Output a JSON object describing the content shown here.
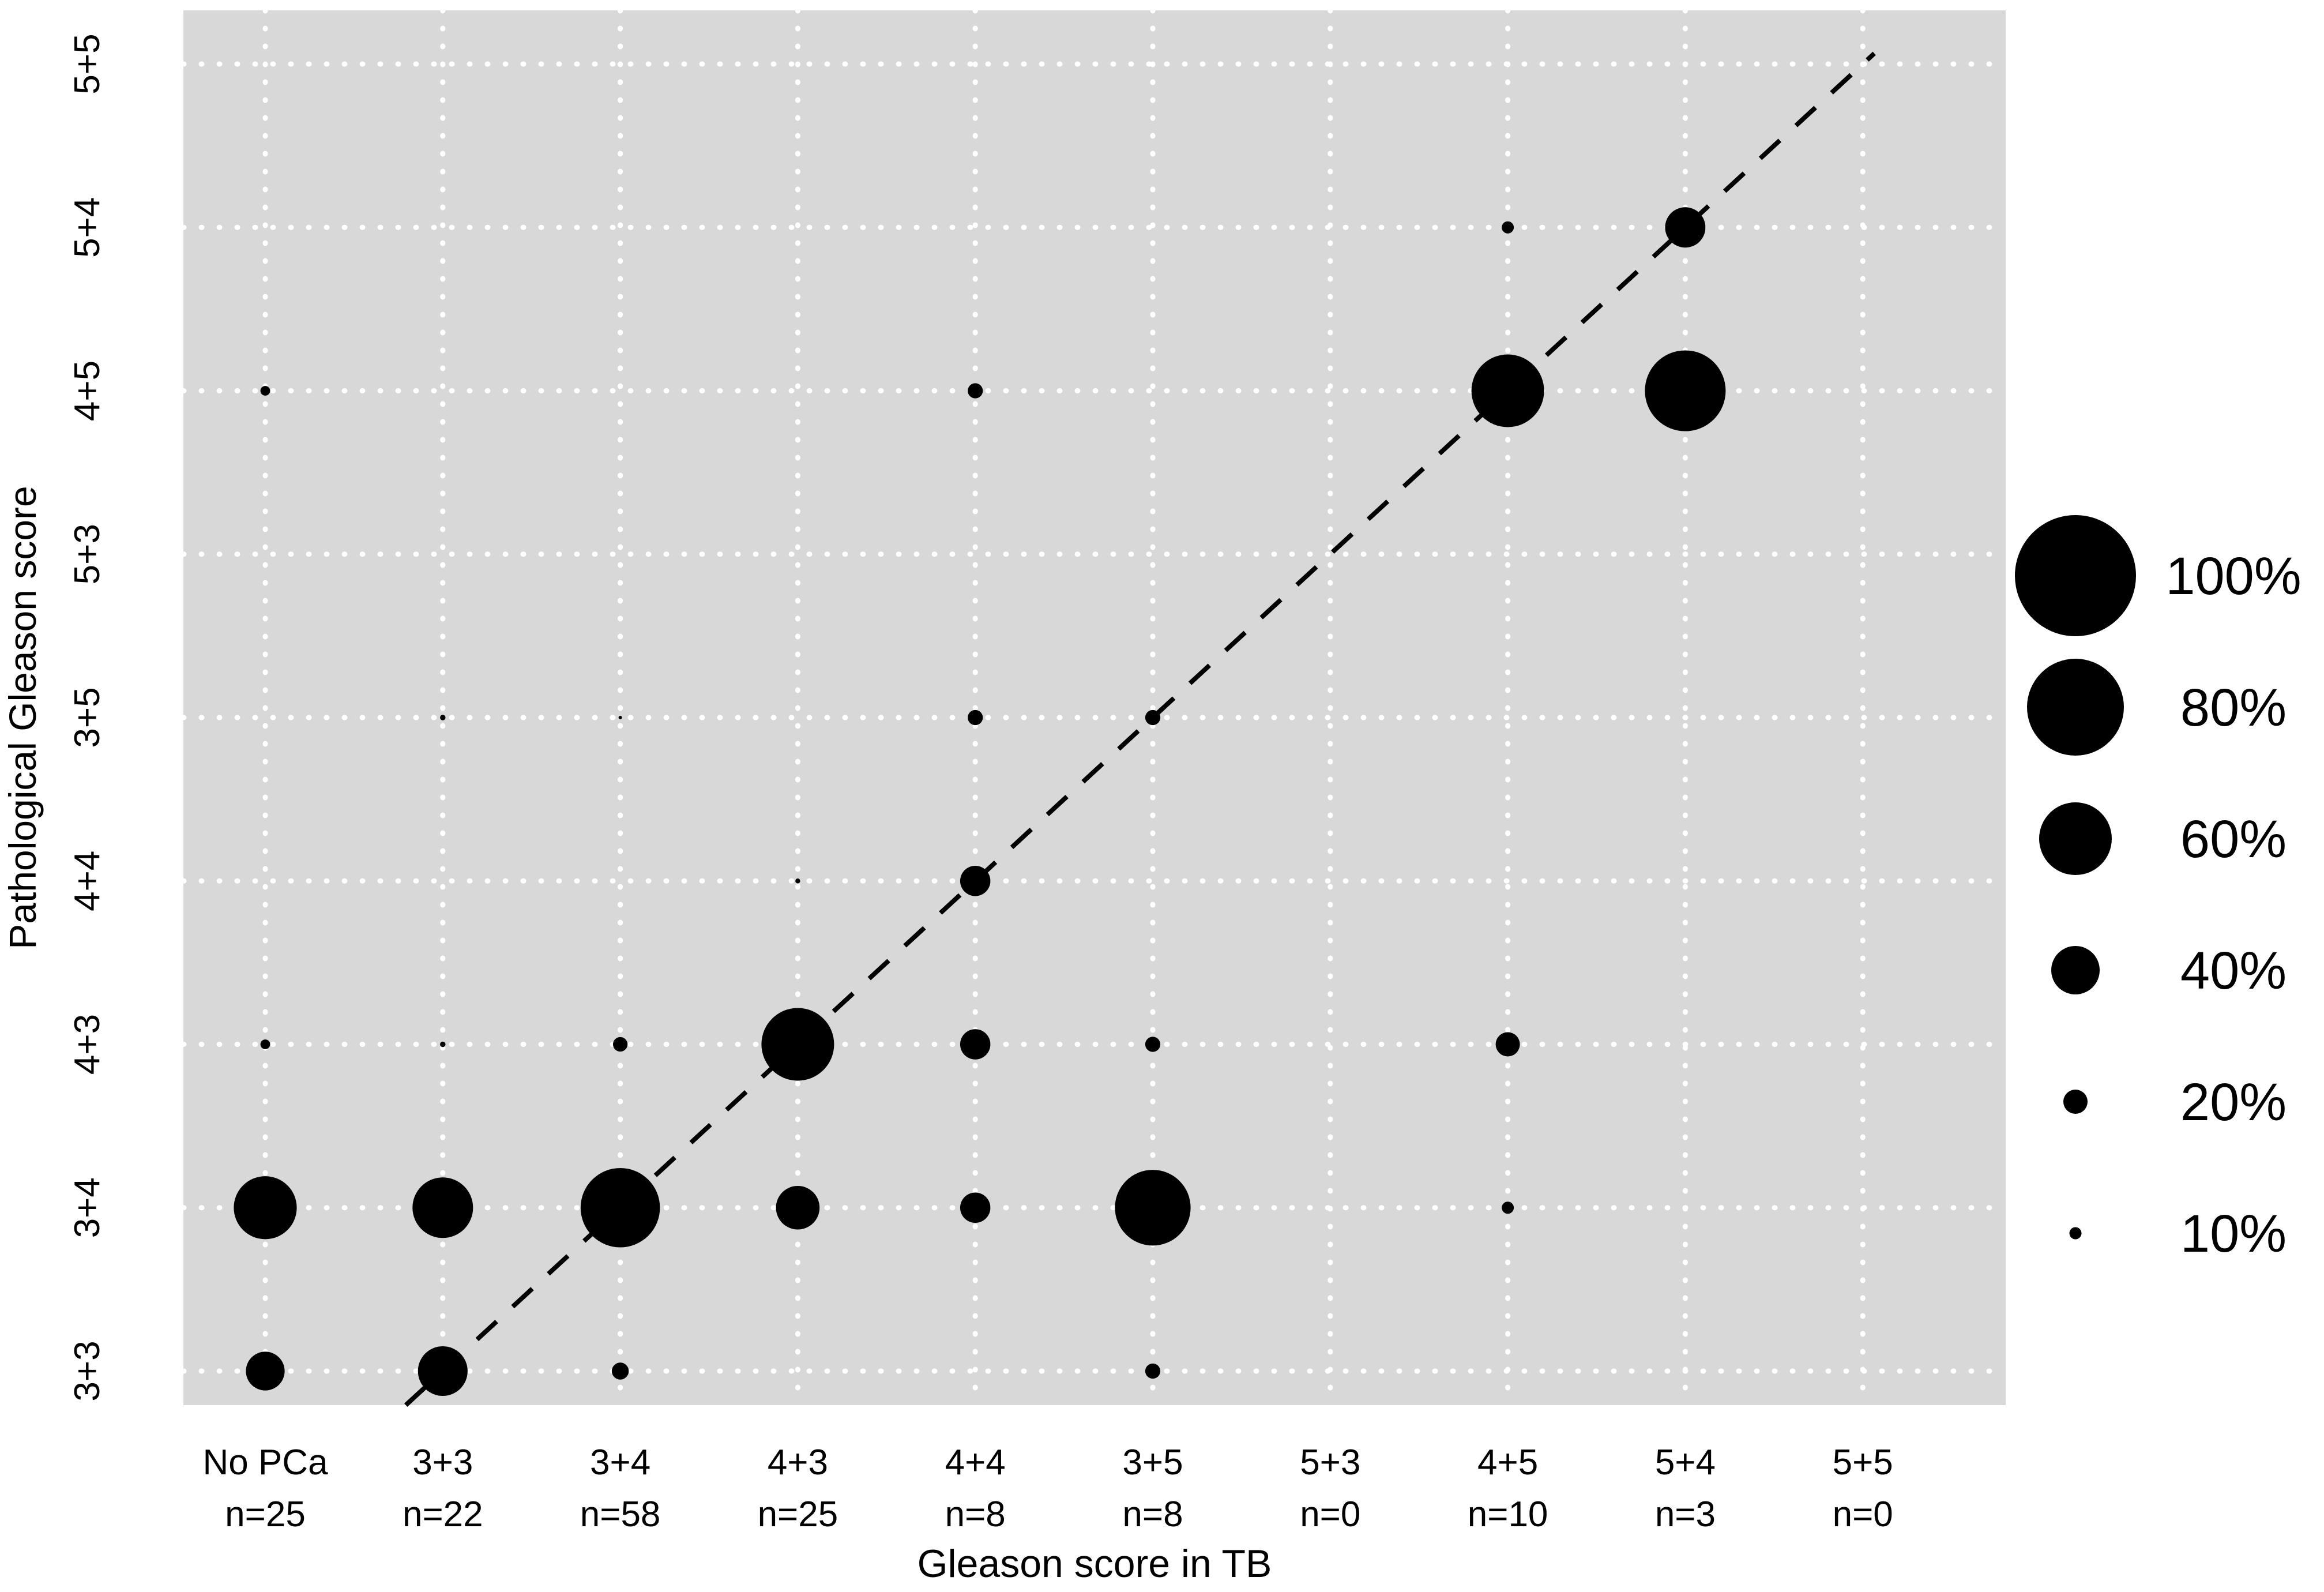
{
  "chart_data": {
    "type": "bubble",
    "title": "",
    "xlabel": "Gleason score in TB",
    "ylabel": "Pathological Gleason score",
    "x_categories": [
      {
        "label": "No PCa",
        "n_label": "n=25"
      },
      {
        "label": "3+3",
        "n_label": "n=22"
      },
      {
        "label": "3+4",
        "n_label": "n=58"
      },
      {
        "label": "4+3",
        "n_label": "n=25"
      },
      {
        "label": "4+4",
        "n_label": "n=8"
      },
      {
        "label": "3+5",
        "n_label": "n=8"
      },
      {
        "label": "5+3",
        "n_label": "n=0"
      },
      {
        "label": "4+5",
        "n_label": "n=10"
      },
      {
        "label": "5+4",
        "n_label": "n=3"
      },
      {
        "label": "5+5",
        "n_label": "n=0"
      }
    ],
    "y_categories_top_to_bottom": [
      "5+5",
      "5+4",
      "4+5",
      "5+3",
      "3+5",
      "4+4",
      "4+3",
      "3+4",
      "3+3"
    ],
    "size_encoding": "circle diameter proportional to percent of column total (n)",
    "bubbles": [
      {
        "x": "No PCa",
        "y": "3+3",
        "pct": 32
      },
      {
        "x": "No PCa",
        "y": "3+4",
        "pct": 52
      },
      {
        "x": "No PCa",
        "y": "4+3",
        "pct": 8
      },
      {
        "x": "No PCa",
        "y": "4+5",
        "pct": 8
      },
      {
        "x": "3+3",
        "y": "3+3",
        "pct": 41
      },
      {
        "x": "3+3",
        "y": "3+4",
        "pct": 50
      },
      {
        "x": "3+3",
        "y": "4+3",
        "pct": 4.5
      },
      {
        "x": "3+3",
        "y": "3+5",
        "pct": 4.5
      },
      {
        "x": "3+4",
        "y": "3+3",
        "pct": 14
      },
      {
        "x": "3+4",
        "y": "3+4",
        "pct": 65.5
      },
      {
        "x": "3+4",
        "y": "4+3",
        "pct": 12
      },
      {
        "x": "3+4",
        "y": "3+5",
        "pct": 2
      },
      {
        "x": "4+3",
        "y": "3+4",
        "pct": 36
      },
      {
        "x": "4+3",
        "y": "4+3",
        "pct": 60
      },
      {
        "x": "4+3",
        "y": "4+4",
        "pct": 4
      },
      {
        "x": "4+4",
        "y": "3+4",
        "pct": 25
      },
      {
        "x": "4+4",
        "y": "4+3",
        "pct": 25
      },
      {
        "x": "4+4",
        "y": "4+4",
        "pct": 25
      },
      {
        "x": "4+4",
        "y": "3+5",
        "pct": 12.5
      },
      {
        "x": "4+4",
        "y": "4+5",
        "pct": 12.5
      },
      {
        "x": "3+5",
        "y": "3+3",
        "pct": 12.5
      },
      {
        "x": "3+5",
        "y": "3+4",
        "pct": 62.5
      },
      {
        "x": "3+5",
        "y": "4+3",
        "pct": 12.5
      },
      {
        "x": "3+5",
        "y": "3+5",
        "pct": 12.5
      },
      {
        "x": "4+5",
        "y": "3+4",
        "pct": 10
      },
      {
        "x": "4+5",
        "y": "4+3",
        "pct": 20
      },
      {
        "x": "4+5",
        "y": "4+5",
        "pct": 60
      },
      {
        "x": "4+5",
        "y": "5+4",
        "pct": 10
      },
      {
        "x": "5+4",
        "y": "4+5",
        "pct": 66.7
      },
      {
        "x": "5+4",
        "y": "5+4",
        "pct": 33.3
      }
    ],
    "identity_line": {
      "style": "dashed",
      "from_category": {
        "x": "3+3",
        "y": "3+3"
      },
      "to_category": {
        "x": "5+5",
        "y": "5+5"
      }
    },
    "legend": {
      "entries": [
        {
          "label": "100%",
          "pct": 100
        },
        {
          "label": "80%",
          "pct": 80
        },
        {
          "label": "60%",
          "pct": 60
        },
        {
          "label": "40%",
          "pct": 40
        },
        {
          "label": "20%",
          "pct": 20
        },
        {
          "label": "10%",
          "pct": 10
        }
      ]
    },
    "grid": "dotted white gridlines on",
    "legend_position": "right",
    "colors": {
      "page_background": "#ffffff",
      "plot_background": "#d8d8d8",
      "point": "#000000",
      "gridline": "#ffffff",
      "text": "#000000",
      "identity_line": "#000000"
    }
  }
}
